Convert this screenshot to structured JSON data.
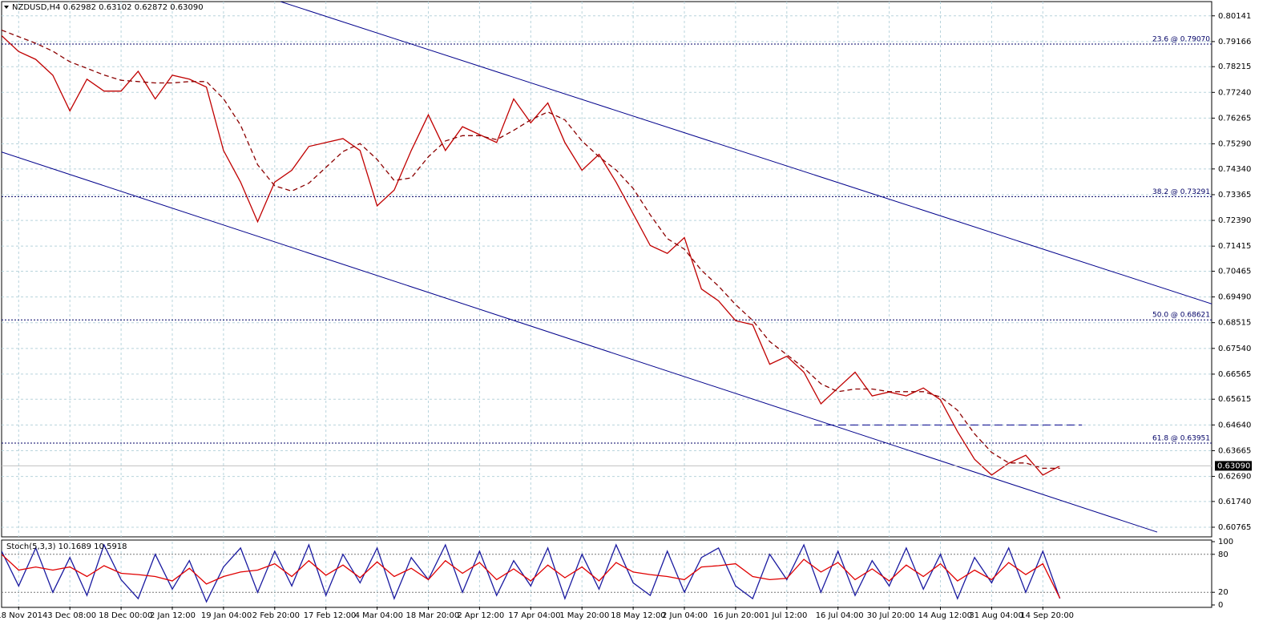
{
  "chart_data": [
    {
      "type": "line",
      "title": "NZDUSD,H4  0.62982 0.63102 0.62872 0.63090",
      "categories": [
        null,
        "18 Nov 2014",
        null,
        null,
        "3 Dec 08:00",
        null,
        null,
        "18 Dec 00:00",
        null,
        null,
        "2 Jan 12:00",
        null,
        null,
        "19 Jan 04:00",
        null,
        null,
        "2 Feb 20:00",
        null,
        null,
        "17 Feb 12:00",
        null,
        null,
        "4 Mar 04:00",
        null,
        null,
        "18 Mar 20:00",
        null,
        null,
        "2 Apr 12:00",
        null,
        null,
        "17 Apr 04:00",
        null,
        null,
        "1 May 20:00",
        null,
        null,
        "18 May 12:00",
        null,
        null,
        "2 Jun 04:00",
        null,
        null,
        "16 Jun 20:00",
        null,
        null,
        "1 Jul 12:00",
        null,
        null,
        "16 Jul 04:00",
        null,
        null,
        "30 Jul 20:00",
        null,
        null,
        "14 Aug 12:00",
        null,
        null,
        "31 Aug 04:00",
        null,
        null,
        "14 Sep 20:00",
        null
      ],
      "series": [
        {
          "color": "#c00000",
          "style": "solid",
          "values": [
            0.7939,
            0.7879,
            0.7849,
            0.7789,
            0.7654,
            0.7774,
            0.7729,
            0.7729,
            0.7804,
            0.7699,
            0.7789,
            0.7774,
            0.7744,
            0.7504,
            0.7384,
            0.7234,
            0.7384,
            0.7429,
            0.7519,
            0.7534,
            0.7549,
            0.7504,
            0.7294,
            0.7354,
            0.7504,
            0.7639,
            0.7504,
            0.7594,
            0.7564,
            0.7534,
            0.7699,
            0.7609,
            0.7684,
            0.7534,
            0.7429,
            0.7489,
            0.7384,
            0.7264,
            0.7144,
            0.7114,
            0.7174,
            0.6979,
            0.6934,
            0.6859,
            0.6844,
            0.6694,
            0.6724,
            0.6664,
            0.6544,
            0.6604,
            0.6664,
            0.6574,
            0.6589,
            0.6574,
            0.6604,
            0.6559,
            0.6439,
            0.6334,
            0.6274,
            0.6319,
            0.6349,
            0.6274,
            0.6309
          ]
        },
        {
          "color": "#8b0000",
          "style": "dashed",
          "values": [
            0.796,
            0.7935,
            0.791,
            0.788,
            0.784,
            0.7815,
            0.779,
            0.777,
            0.7765,
            0.776,
            0.776,
            0.7765,
            0.7765,
            0.77,
            0.76,
            0.745,
            0.737,
            0.735,
            0.738,
            0.744,
            0.75,
            0.753,
            0.747,
            0.739,
            0.74,
            0.748,
            0.754,
            0.756,
            0.756,
            0.7545,
            0.758,
            0.762,
            0.765,
            0.762,
            0.754,
            0.748,
            0.743,
            0.736,
            0.726,
            0.717,
            0.713,
            0.705,
            0.699,
            0.692,
            0.686,
            0.678,
            0.673,
            0.668,
            0.662,
            0.659,
            0.66,
            0.66,
            0.659,
            0.659,
            0.659,
            0.657,
            0.652,
            0.643,
            0.636,
            0.632,
            0.632,
            0.63,
            0.63
          ]
        }
      ],
      "ylim": [
        0.604,
        0.8068
      ],
      "yticks": [
        0.80141,
        0.79166,
        0.78215,
        {
          "value": 0.7724,
          "label": "0.77240"
        },
        0.76265,
        {
          "value": 0.7529,
          "label": "0.75290"
        },
        {
          "value": 0.7434,
          "label": "0.74340"
        },
        0.73365,
        {
          "value": 0.7239,
          "label": "0.72390"
        },
        0.71415,
        0.70465,
        {
          "value": 0.6949,
          "label": "0.69490"
        },
        0.68515,
        {
          "value": 0.6754,
          "label": "0.67540"
        },
        0.66565,
        0.65615,
        {
          "value": 0.6464,
          "label": "0.64640"
        },
        0.63665,
        {
          "value": 0.6269,
          "label": "0.62690"
        },
        {
          "value": 0.6174,
          "label": "0.61740"
        },
        0.60765
      ],
      "last": {
        "value": 0.6309,
        "label": "0.63090"
      },
      "fib_levels": [
        {
          "value": 0.7907,
          "label": "23.6 @ 0.79070"
        },
        {
          "value": 0.73291,
          "label": "38.2 @ 0.73291"
        },
        {
          "value": 0.68621,
          "label": "50.0 @ 0.68621"
        },
        {
          "value": 0.63951,
          "label": "61.8 @ 0.63951"
        }
      ],
      "channel_lines": [
        {
          "x": [
            16.34,
            71.5
          ],
          "y": [
            0.8068,
            0.691
          ]
        },
        {
          "x": [
            0,
            67.7
          ],
          "y": [
            0.7498,
            0.6058
          ]
        }
      ],
      "support_line": {
        "x": [
          47.6,
          63.3
        ],
        "y": 0.6464
      },
      "grid": true
    },
    {
      "type": "line",
      "title": "Stoch(5,3,3) 10.1689 10.5918",
      "series": [
        {
          "color": "#1a1aa0",
          "values": [
            85,
            30,
            90,
            20,
            75,
            15,
            95,
            40,
            10,
            80,
            25,
            70,
            5,
            60,
            90,
            20,
            85,
            30,
            95,
            15,
            80,
            35,
            90,
            10,
            75,
            40,
            95,
            20,
            85,
            15,
            70,
            30,
            90,
            10,
            80,
            25,
            95,
            35,
            15,
            85,
            20,
            75,
            90,
            30,
            10,
            80,
            40,
            95,
            20,
            85,
            15,
            70,
            30,
            90,
            25,
            80,
            10,
            75,
            35,
            90,
            20,
            85,
            10.1689
          ]
        },
        {
          "color": "#e00000",
          "values": [
            80,
            55,
            60,
            55,
            60,
            45,
            62,
            50,
            48,
            45,
            38,
            58,
            33,
            45,
            52,
            55,
            65,
            45,
            70,
            47,
            63,
            43,
            68,
            45,
            58,
            40,
            70,
            50,
            67,
            40,
            57,
            38,
            63,
            43,
            60,
            38,
            67,
            52,
            48,
            45,
            40,
            60,
            62,
            65,
            45,
            40,
            42,
            72,
            52,
            67,
            40,
            57,
            38,
            63,
            45,
            65,
            38,
            55,
            40,
            67,
            48,
            65,
            10.5918
          ]
        }
      ],
      "ylim": [
        0,
        100
      ],
      "yticks": [
        0,
        20,
        80,
        100
      ],
      "levels": [
        20,
        80
      ]
    }
  ]
}
